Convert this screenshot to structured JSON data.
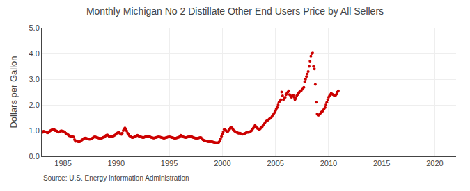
{
  "chart_data": {
    "type": "scatter",
    "title": "Monthly Michigan No 2 Distillate Other End Users Price by All Sellers",
    "ylabel": "Dollars per Gallon",
    "annotations": [
      "Source: U.S. Energy Information Administration"
    ],
    "color": "#cc0000",
    "marker": "circle",
    "grid": true,
    "xlim": [
      1983.0,
      2022.0
    ],
    "ylim": [
      0.0,
      5.0
    ],
    "xticks": [
      1985,
      1990,
      1995,
      2000,
      2005,
      2010,
      2015,
      2020
    ],
    "yticks": [
      {
        "value": 0.0,
        "label": "0.0"
      },
      {
        "value": 1.0,
        "label": "1.0"
      },
      {
        "value": 2.0,
        "label": "2.0"
      },
      {
        "value": 3.0,
        "label": "3.0"
      },
      {
        "value": 4.0,
        "label": "4.0"
      },
      {
        "value": 5.0,
        "label": "5.0"
      }
    ],
    "x": [
      1983.08,
      1983.17,
      1983.25,
      1983.33,
      1983.42,
      1983.5,
      1983.58,
      1983.67,
      1983.75,
      1983.83,
      1983.92,
      1984.0,
      1984.08,
      1984.17,
      1984.25,
      1984.33,
      1984.42,
      1984.5,
      1984.58,
      1984.67,
      1984.75,
      1984.83,
      1984.92,
      1985.0,
      1985.08,
      1985.17,
      1985.25,
      1985.33,
      1985.42,
      1985.5,
      1985.58,
      1985.67,
      1985.75,
      1985.83,
      1985.92,
      1986.0,
      1986.08,
      1986.17,
      1986.25,
      1986.33,
      1986.42,
      1986.5,
      1986.58,
      1986.67,
      1986.75,
      1986.83,
      1986.92,
      1987.0,
      1987.08,
      1987.17,
      1987.25,
      1987.33,
      1987.42,
      1987.5,
      1987.58,
      1987.67,
      1987.75,
      1987.83,
      1987.92,
      1988.0,
      1988.08,
      1988.17,
      1988.25,
      1988.33,
      1988.42,
      1988.5,
      1988.58,
      1988.67,
      1988.75,
      1988.83,
      1988.92,
      1989.0,
      1989.08,
      1989.17,
      1989.25,
      1989.33,
      1989.42,
      1989.5,
      1989.58,
      1989.67,
      1989.75,
      1989.83,
      1989.92,
      1990.0,
      1990.08,
      1990.17,
      1990.25,
      1990.33,
      1990.42,
      1990.5,
      1990.58,
      1990.67,
      1990.75,
      1990.83,
      1990.92,
      1991.0,
      1991.08,
      1991.17,
      1991.25,
      1991.33,
      1991.42,
      1991.5,
      1991.58,
      1991.67,
      1991.75,
      1991.83,
      1991.92,
      1992.0,
      1992.08,
      1992.17,
      1992.25,
      1992.33,
      1992.42,
      1992.5,
      1992.58,
      1992.67,
      1992.75,
      1992.83,
      1992.92,
      1993.0,
      1993.08,
      1993.17,
      1993.25,
      1993.33,
      1993.42,
      1993.5,
      1993.58,
      1993.67,
      1993.75,
      1993.83,
      1993.92,
      1994.0,
      1994.08,
      1994.17,
      1994.25,
      1994.33,
      1994.42,
      1994.5,
      1994.58,
      1994.67,
      1994.75,
      1994.83,
      1994.92,
      1995.0,
      1995.08,
      1995.17,
      1995.25,
      1995.33,
      1995.42,
      1995.5,
      1995.58,
      1995.67,
      1995.75,
      1995.83,
      1995.92,
      1996.0,
      1996.08,
      1996.17,
      1996.25,
      1996.33,
      1996.42,
      1996.5,
      1996.58,
      1996.67,
      1996.75,
      1996.83,
      1996.92,
      1997.0,
      1997.08,
      1997.17,
      1997.25,
      1997.33,
      1997.42,
      1997.5,
      1997.58,
      1997.67,
      1997.75,
      1997.83,
      1997.92,
      1998.0,
      1998.08,
      1998.17,
      1998.25,
      1998.33,
      1998.42,
      1998.5,
      1998.58,
      1998.67,
      1998.75,
      1998.83,
      1998.92,
      1999.0,
      1999.08,
      1999.17,
      1999.25,
      1999.33,
      1999.42,
      1999.5,
      1999.58,
      1999.67,
      1999.75,
      1999.83,
      1999.92,
      2000.0,
      2000.08,
      2000.17,
      2000.25,
      2000.33,
      2000.42,
      2000.5,
      2000.58,
      2000.67,
      2000.75,
      2000.83,
      2000.92,
      2001.0,
      2001.08,
      2001.17,
      2001.25,
      2001.33,
      2001.42,
      2001.5,
      2001.58,
      2001.67,
      2001.75,
      2001.83,
      2001.92,
      2002.0,
      2002.08,
      2002.17,
      2002.25,
      2002.33,
      2002.42,
      2002.5,
      2002.58,
      2002.67,
      2002.75,
      2002.83,
      2002.92,
      2003.0,
      2003.08,
      2003.17,
      2003.25,
      2003.33,
      2003.42,
      2003.5,
      2003.58,
      2003.67,
      2003.75,
      2003.83,
      2003.92,
      2004.0,
      2004.08,
      2004.17,
      2004.25,
      2004.33,
      2004.42,
      2004.5,
      2004.58,
      2004.67,
      2004.75,
      2004.83,
      2004.92,
      2005.0,
      2005.08,
      2005.17,
      2005.25,
      2005.33,
      2005.42,
      2005.5,
      2005.58,
      2005.67,
      2005.75,
      2005.83,
      2005.92,
      2006.0,
      2006.08,
      2006.17,
      2006.25,
      2006.33,
      2006.42,
      2006.5,
      2006.58,
      2006.67,
      2006.75,
      2006.83,
      2006.92,
      2007.0,
      2007.08,
      2007.17,
      2007.25,
      2007.33,
      2007.42,
      2007.5,
      2007.58,
      2007.67,
      2007.75,
      2007.83,
      2007.92,
      2008.0,
      2008.08,
      2008.17,
      2008.25,
      2008.33,
      2008.42,
      2008.5,
      2008.58,
      2008.67,
      2008.75,
      2008.83,
      2008.92,
      2009.0,
      2009.08,
      2009.17,
      2009.25,
      2009.33,
      2009.42,
      2009.5,
      2009.58,
      2009.67,
      2009.75,
      2009.83,
      2009.92,
      2010.0,
      2010.08,
      2010.17,
      2010.25,
      2010.33,
      2010.42,
      2010.5,
      2010.58,
      2010.67,
      2010.75,
      2010.83,
      2010.92
    ],
    "values": [
      0.93,
      0.97,
      0.96,
      0.95,
      0.94,
      0.92,
      0.91,
      0.94,
      0.98,
      1.0,
      1.02,
      1.04,
      1.05,
      1.04,
      1.0,
      0.99,
      0.98,
      0.96,
      0.94,
      0.95,
      0.97,
      0.99,
      0.98,
      0.97,
      0.96,
      0.94,
      0.9,
      0.88,
      0.85,
      0.83,
      0.8,
      0.79,
      0.78,
      0.77,
      0.76,
      0.75,
      0.65,
      0.58,
      0.6,
      0.58,
      0.57,
      0.56,
      0.57,
      0.6,
      0.62,
      0.65,
      0.68,
      0.7,
      0.71,
      0.7,
      0.69,
      0.68,
      0.67,
      0.66,
      0.67,
      0.68,
      0.7,
      0.72,
      0.75,
      0.76,
      0.75,
      0.73,
      0.72,
      0.71,
      0.7,
      0.69,
      0.7,
      0.71,
      0.73,
      0.74,
      0.75,
      0.8,
      0.82,
      0.83,
      0.81,
      0.78,
      0.77,
      0.76,
      0.77,
      0.78,
      0.79,
      0.81,
      0.83,
      0.88,
      0.9,
      0.92,
      0.93,
      0.9,
      0.88,
      0.85,
      0.9,
      1.0,
      1.07,
      1.1,
      1.05,
      0.98,
      0.9,
      0.85,
      0.8,
      0.78,
      0.75,
      0.73,
      0.73,
      0.74,
      0.76,
      0.78,
      0.8,
      0.82,
      0.8,
      0.78,
      0.77,
      0.75,
      0.74,
      0.73,
      0.73,
      0.74,
      0.76,
      0.77,
      0.78,
      0.79,
      0.78,
      0.76,
      0.74,
      0.73,
      0.72,
      0.71,
      0.71,
      0.72,
      0.73,
      0.74,
      0.75,
      0.76,
      0.75,
      0.74,
      0.73,
      0.72,
      0.71,
      0.7,
      0.71,
      0.72,
      0.73,
      0.74,
      0.75,
      0.76,
      0.75,
      0.74,
      0.73,
      0.72,
      0.71,
      0.7,
      0.7,
      0.71,
      0.72,
      0.73,
      0.74,
      0.78,
      0.82,
      0.8,
      0.77,
      0.75,
      0.74,
      0.73,
      0.73,
      0.74,
      0.75,
      0.76,
      0.77,
      0.78,
      0.77,
      0.75,
      0.73,
      0.72,
      0.71,
      0.7,
      0.7,
      0.7,
      0.71,
      0.72,
      0.73,
      0.72,
      0.68,
      0.64,
      0.62,
      0.61,
      0.6,
      0.59,
      0.58,
      0.57,
      0.57,
      0.57,
      0.57,
      0.57,
      0.56,
      0.55,
      0.54,
      0.53,
      0.53,
      0.52,
      0.53,
      0.55,
      0.6,
      0.68,
      0.78,
      0.88,
      0.95,
      1.05,
      1.05,
      1.0,
      0.95,
      0.95,
      1.0,
      1.05,
      1.1,
      1.12,
      1.1,
      1.05,
      1.0,
      0.97,
      0.95,
      0.93,
      0.92,
      0.9,
      0.9,
      0.9,
      0.88,
      0.87,
      0.86,
      0.87,
      0.88,
      0.9,
      0.92,
      0.93,
      0.93,
      0.93,
      0.95,
      0.97,
      1.0,
      1.05,
      1.1,
      1.15,
      1.2,
      1.15,
      1.1,
      1.08,
      1.05,
      1.05,
      1.08,
      1.12,
      1.15,
      1.2,
      1.25,
      1.3,
      1.35,
      1.38,
      1.4,
      1.42,
      1.45,
      1.48,
      1.5,
      1.55,
      1.6,
      1.65,
      1.7,
      1.78,
      1.85,
      1.9,
      2.0,
      2.1,
      2.15,
      2.2,
      2.5,
      2.35,
      2.2,
      2.25,
      2.3,
      2.4,
      2.45,
      2.5,
      2.55,
      2.4,
      2.35,
      2.3,
      2.35,
      2.38,
      2.3,
      2.2,
      2.25,
      2.35,
      2.4,
      2.45,
      2.5,
      2.55,
      2.55,
      2.6,
      2.65,
      2.68,
      2.9,
      3.0,
      3.1,
      3.2,
      3.3,
      3.5,
      3.7,
      3.9,
      4.0,
      4.02,
      3.5,
      3.4,
      2.8,
      2.1,
      1.65,
      1.6,
      1.6,
      1.65,
      1.68,
      1.72,
      1.75,
      1.8,
      1.85,
      1.9,
      2.0,
      2.1,
      2.2,
      2.3,
      2.35,
      2.4,
      2.45,
      2.42,
      2.4,
      2.38,
      2.35,
      2.38,
      2.42,
      2.5,
      2.55
    ]
  }
}
